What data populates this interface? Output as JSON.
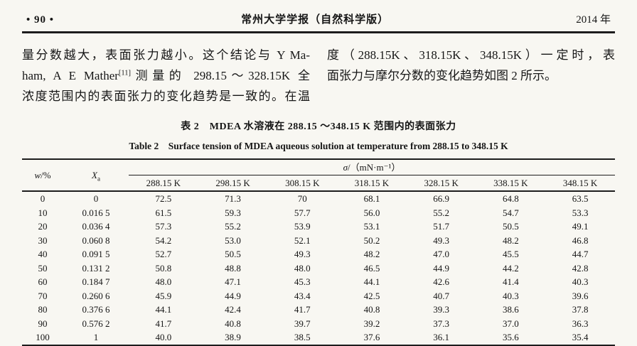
{
  "page_header": {
    "page_number": "• 90 •",
    "journal_title": "常州大学学报（自然科学版）",
    "year": "2014 年"
  },
  "body": {
    "left_column": {
      "line1": "量分数越大，表面张力越小。这个结论与 Y Ma-",
      "line2_before": "ham, A E Mather",
      "line2_sup": "[11]",
      "line2_after": "测量的 298.15～328.15K 全",
      "line3": "浓度范围内的表面张力的变化趋势是一致的。在温"
    },
    "right_column": {
      "line1": "度（288.15K、318.15K、348.15K）一定时，表",
      "line2": "面张力与摩尔分数的变化趋势如图 2 所示。"
    }
  },
  "table": {
    "caption_zh": "表 2　MDEA 水溶液在 288.15 ～348.15 K 范围内的表面张力",
    "caption_en": "Table 2　Surface tension of MDEA aqueous solution at temperature from 288.15 to 348.15 K",
    "col_w_italic": "w",
    "col_w_suffix": "/%",
    "col_x_italic": "X",
    "col_x_sub": "a",
    "sigma_symbol": "σ",
    "sigma_units": "/（mN·m⁻¹）",
    "temp_columns": [
      "288.15 K",
      "298.15 K",
      "308.15 K",
      "318.15 K",
      "328.15 K",
      "338.15 K",
      "348.15 K"
    ],
    "rows": [
      [
        "0",
        "0",
        "72.5",
        "71.3",
        "70",
        "68.1",
        "66.9",
        "64.8",
        "63.5"
      ],
      [
        "10",
        "0.016 5",
        "61.5",
        "59.3",
        "57.7",
        "56.0",
        "55.2",
        "54.7",
        "53.3"
      ],
      [
        "20",
        "0.036 4",
        "57.3",
        "55.2",
        "53.9",
        "53.1",
        "51.7",
        "50.5",
        "49.1"
      ],
      [
        "30",
        "0.060 8",
        "54.2",
        "53.0",
        "52.1",
        "50.2",
        "49.3",
        "48.2",
        "46.8"
      ],
      [
        "40",
        "0.091 5",
        "52.7",
        "50.5",
        "49.3",
        "48.2",
        "47.0",
        "45.5",
        "44.7"
      ],
      [
        "50",
        "0.131 2",
        "50.8",
        "48.8",
        "48.0",
        "46.5",
        "44.9",
        "44.2",
        "42.8"
      ],
      [
        "60",
        "0.184 7",
        "48.0",
        "47.1",
        "45.3",
        "44.1",
        "42.6",
        "41.4",
        "40.3"
      ],
      [
        "70",
        "0.260 6",
        "45.9",
        "44.9",
        "43.4",
        "42.5",
        "40.7",
        "40.3",
        "39.6"
      ],
      [
        "80",
        "0.376 6",
        "44.1",
        "42.4",
        "41.7",
        "40.8",
        "39.3",
        "38.6",
        "37.8"
      ],
      [
        "90",
        "0.576 2",
        "41.7",
        "40.8",
        "39.7",
        "39.2",
        "37.3",
        "37.0",
        "36.3"
      ],
      [
        "100",
        "1",
        "40.0",
        "38.9",
        "38.5",
        "37.6",
        "36.1",
        "35.6",
        "35.4"
      ]
    ]
  },
  "colors": {
    "background": "#f8f7f2",
    "text": "#161616",
    "rule": "#1d1d1d"
  }
}
